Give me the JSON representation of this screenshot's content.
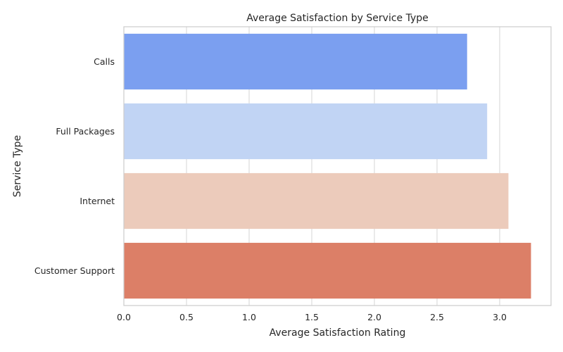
{
  "chart_data": {
    "type": "bar",
    "orientation": "horizontal",
    "title": "Average Satisfaction by Service Type",
    "xlabel": "Average Satisfaction Rating",
    "ylabel": "Service Type",
    "categories": [
      "Calls",
      "Full Packages",
      "Internet",
      "Customer Support"
    ],
    "values": [
      2.74,
      2.9,
      3.07,
      3.25
    ],
    "colors": [
      "#7b9ff0",
      "#c1d4f4",
      "#eccbbb",
      "#dc7f67"
    ],
    "xlim": [
      0,
      3.41
    ],
    "xticks": [
      "0.0",
      "0.5",
      "1.0",
      "1.5",
      "2.0",
      "2.5",
      "3.0"
    ],
    "grid": true,
    "legend": "none"
  }
}
